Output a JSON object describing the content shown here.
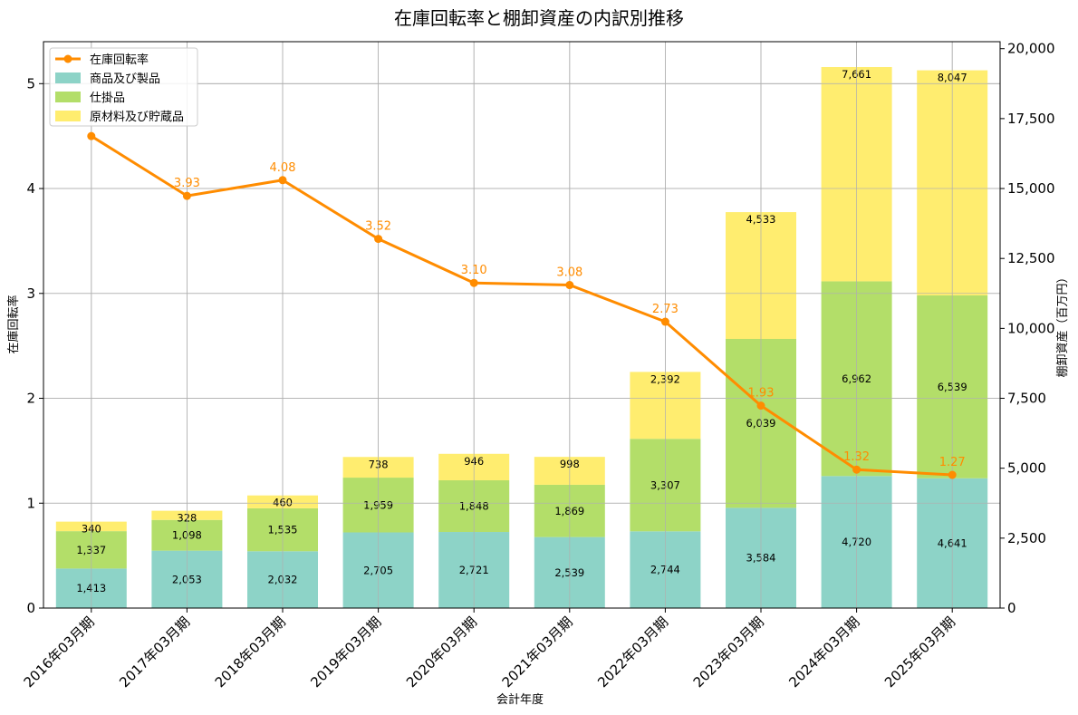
{
  "chart_data": {
    "type": "bar",
    "title": "在庫回転率と棚卸資産の内訳別推移",
    "xlabel": "会計年度",
    "ylabel_left": "在庫回転率",
    "ylabel_right": "棚卸資産（百万円）",
    "categories": [
      "2016年03月期",
      "2017年03月期",
      "2018年03月期",
      "2019年03月期",
      "2020年03月期",
      "2021年03月期",
      "2022年03月期",
      "2023年03月期",
      "2024年03月期",
      "2025年03月期"
    ],
    "series": [
      {
        "name": "商品及び製品",
        "kind": "stacked-bar",
        "axis": "right",
        "color": "#8dd3c7",
        "values": [
          1413,
          2053,
          2032,
          2705,
          2721,
          2539,
          2744,
          3584,
          4720,
          4641
        ],
        "labels": [
          "1,413",
          "2,053",
          "2,032",
          "2,705",
          "2,721",
          "2,539",
          "2,744",
          "3,584",
          "4,720",
          "4,641"
        ]
      },
      {
        "name": "仕掛品",
        "kind": "stacked-bar",
        "axis": "right",
        "color": "#b3de69",
        "values": [
          1337,
          1098,
          1535,
          1959,
          1848,
          1869,
          3307,
          6039,
          6962,
          6539
        ],
        "labels": [
          "1,337",
          "1,098",
          "1,535",
          "1,959",
          "1,848",
          "1,869",
          "3,307",
          "6,039",
          "6,962",
          "6,539"
        ]
      },
      {
        "name": "原材料及び貯蔵品",
        "kind": "stacked-bar",
        "axis": "right",
        "color": "#ffed6f",
        "values": [
          340,
          328,
          460,
          738,
          946,
          998,
          2392,
          4533,
          7661,
          8047
        ],
        "labels": [
          "340",
          "328",
          "460",
          "738",
          "946",
          "998",
          "2,392",
          "4,533",
          "7,661",
          "8,047"
        ]
      },
      {
        "name": "在庫回転率",
        "kind": "line",
        "axis": "left",
        "color": "#ff8c00",
        "values": [
          4.5,
          3.93,
          4.08,
          3.52,
          3.1,
          3.08,
          2.73,
          1.93,
          1.32,
          1.27
        ],
        "labels": [
          "",
          "3.93",
          "4.08",
          "3.52",
          "3.10",
          "3.08",
          "2.73",
          "1.93",
          "1.32",
          "1.27"
        ]
      }
    ],
    "y_left": {
      "range": [
        0,
        5.4
      ],
      "ticks": [
        0,
        1,
        2,
        3,
        4,
        5
      ],
      "tick_labels": [
        "0",
        "1",
        "2",
        "3",
        "4",
        "5"
      ]
    },
    "y_right": {
      "range": [
        0,
        20250
      ],
      "ticks": [
        0,
        2500,
        5000,
        7500,
        10000,
        12500,
        15000,
        17500,
        20000
      ],
      "tick_labels": [
        "0",
        "2,500",
        "5,000",
        "7,500",
        "10,000",
        "12,500",
        "15,000",
        "17,500",
        "20,000"
      ]
    },
    "legend": {
      "placement": "top-left",
      "order": [
        "在庫回転率",
        "商品及び製品",
        "仕掛品",
        "原材料及び貯蔵品"
      ]
    },
    "grid": true
  }
}
